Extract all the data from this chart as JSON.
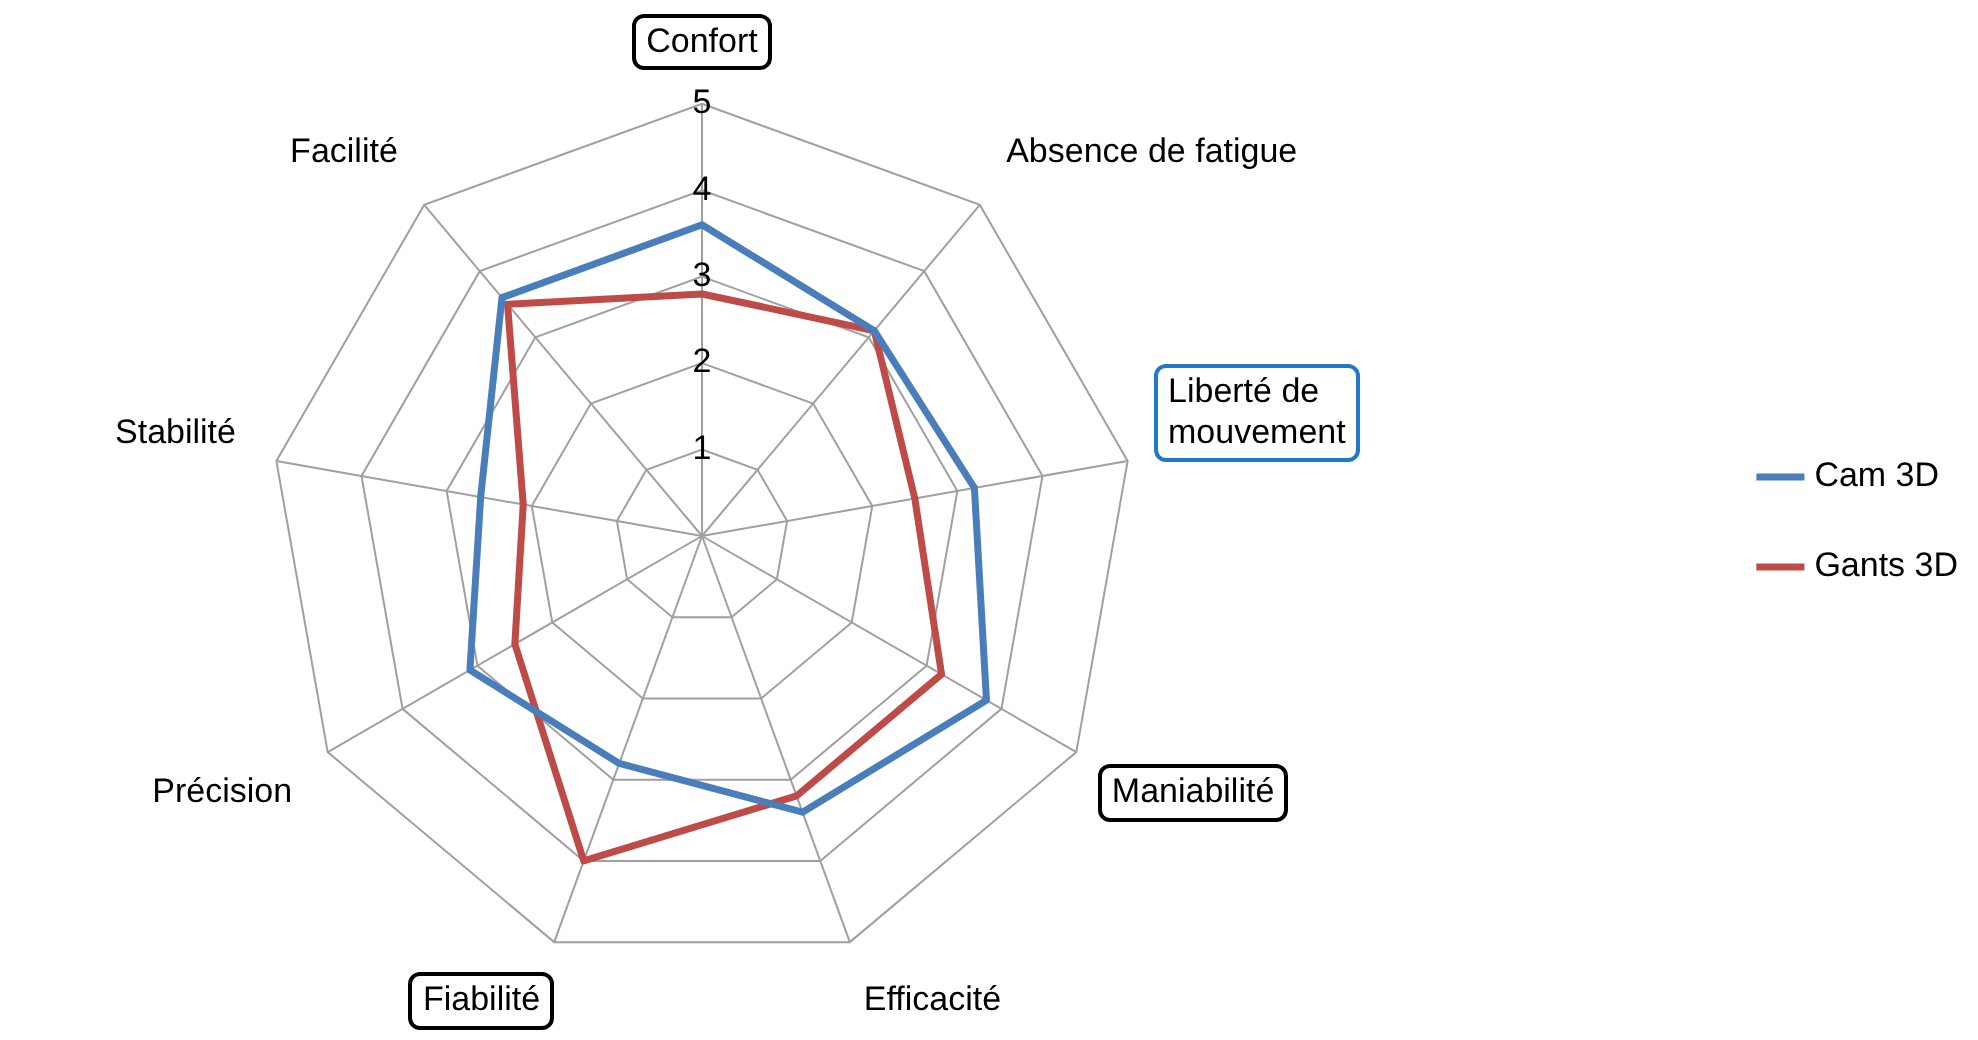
{
  "chart_data": {
    "type": "radar",
    "categories": [
      "Confort",
      "Absence de fatigue",
      "Liberté de mouvement",
      "Maniabilité",
      "Efficacité",
      "Fiabilité",
      "Précision",
      "Stabilité",
      "Facilité"
    ],
    "series": [
      {
        "name": "Cam 3D",
        "color": "#4a7ebb",
        "values": [
          3.6,
          3.1,
          3.2,
          3.8,
          3.4,
          2.8,
          3.1,
          2.6,
          3.6
        ]
      },
      {
        "name": "Gants 3D",
        "color": "#be4b48",
        "values": [
          2.8,
          3.1,
          2.5,
          3.2,
          3.2,
          4.0,
          2.5,
          2.1,
          3.5
        ]
      }
    ],
    "ylim": [
      0,
      5
    ],
    "yticks": [
      1,
      2,
      3,
      4,
      5
    ],
    "grid": true,
    "legend": "right",
    "marker": "none",
    "line_style": "solid"
  }
}
